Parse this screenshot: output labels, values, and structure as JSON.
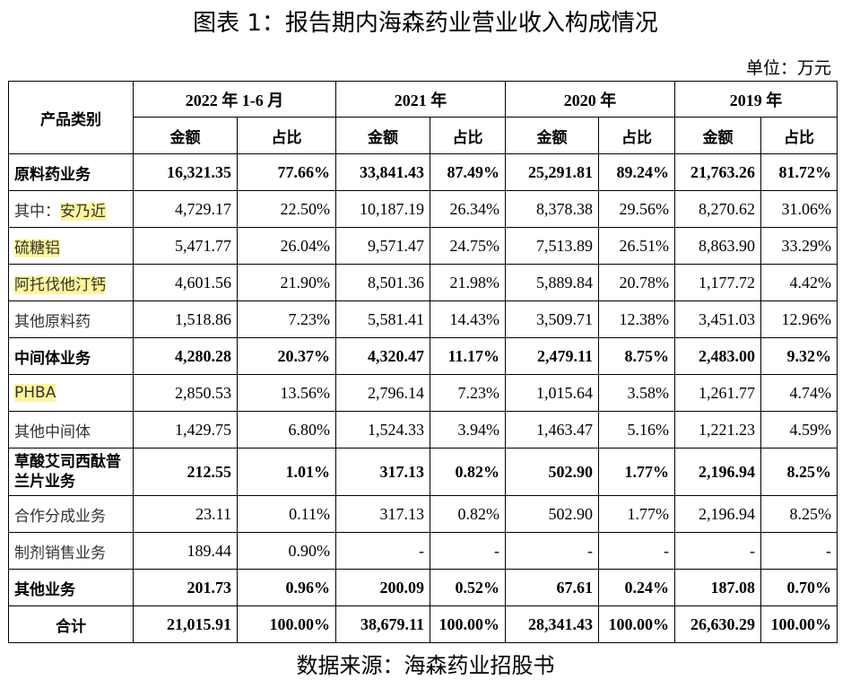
{
  "title": "图表 1：报告期内海森药业营业收入构成情况",
  "unit": "单位：万元",
  "header": {
    "category": "产品类别",
    "periods": [
      "2022 年 1-6 月",
      "2021 年",
      "2020 年",
      "2019 年"
    ],
    "amount": "金额",
    "share": "占比"
  },
  "rows": [
    {
      "prefix": "",
      "label": "原料药业务",
      "values": [
        "16,321.35",
        "77.66%",
        "33,841.43",
        "87.49%",
        "25,291.81",
        "89.24%",
        "21,763.26",
        "81.72%"
      ]
    },
    {
      "prefix": "其中：",
      "label": "安乃近",
      "values": [
        "4,729.17",
        "22.50%",
        "10,187.19",
        "26.34%",
        "8,378.38",
        "29.56%",
        "8,270.62",
        "31.06%"
      ]
    },
    {
      "prefix": "",
      "label": "硫糖铝",
      "values": [
        "5,471.77",
        "26.04%",
        "9,571.47",
        "24.75%",
        "7,513.89",
        "26.51%",
        "8,863.90",
        "33.29%"
      ]
    },
    {
      "prefix": "",
      "label": "阿托伐他汀钙",
      "values": [
        "4,601.56",
        "21.90%",
        "8,501.36",
        "21.98%",
        "5,889.84",
        "20.78%",
        "1,177.72",
        "4.42%"
      ]
    },
    {
      "prefix": "",
      "label": "其他原料药",
      "values": [
        "1,518.86",
        "7.23%",
        "5,581.41",
        "14.43%",
        "3,509.71",
        "12.38%",
        "3,451.03",
        "12.96%"
      ]
    },
    {
      "prefix": "",
      "label": "中间体业务",
      "values": [
        "4,280.28",
        "20.37%",
        "4,320.47",
        "11.17%",
        "2,479.11",
        "8.75%",
        "2,483.00",
        "9.32%"
      ]
    },
    {
      "prefix": "",
      "label": "PHBA",
      "values": [
        "2,850.53",
        "13.56%",
        "2,796.14",
        "7.23%",
        "1,015.64",
        "3.58%",
        "1,261.77",
        "4.74%"
      ]
    },
    {
      "prefix": "",
      "label": "其他中间体",
      "values": [
        "1,429.75",
        "6.80%",
        "1,524.33",
        "3.94%",
        "1,463.47",
        "5.16%",
        "1,221.23",
        "4.59%"
      ]
    },
    {
      "prefix": "",
      "label": "草酸艾司西酞普兰片业务",
      "values": [
        "212.55",
        "1.01%",
        "317.13",
        "0.82%",
        "502.90",
        "1.77%",
        "2,196.94",
        "8.25%"
      ]
    },
    {
      "prefix": "",
      "label": "合作分成业务",
      "values": [
        "23.11",
        "0.11%",
        "317.13",
        "0.82%",
        "502.90",
        "1.77%",
        "2,196.94",
        "8.25%"
      ]
    },
    {
      "prefix": "",
      "label": "制剂销售业务",
      "values": [
        "189.44",
        "0.90%",
        "-",
        "-",
        "-",
        "-",
        "-",
        "-"
      ]
    },
    {
      "prefix": "",
      "label": "其他业务",
      "values": [
        "201.73",
        "0.96%",
        "200.09",
        "0.52%",
        "67.61",
        "0.24%",
        "187.08",
        "0.70%"
      ]
    },
    {
      "prefix": "",
      "label": "合计",
      "values": [
        "21,015.91",
        "100.00%",
        "38,679.11",
        "100.00%",
        "28,341.43",
        "100.00%",
        "26,630.29",
        "100.00%"
      ]
    }
  ],
  "source": "数据来源：海森药业招股书",
  "highlight_color": "#fff59d"
}
